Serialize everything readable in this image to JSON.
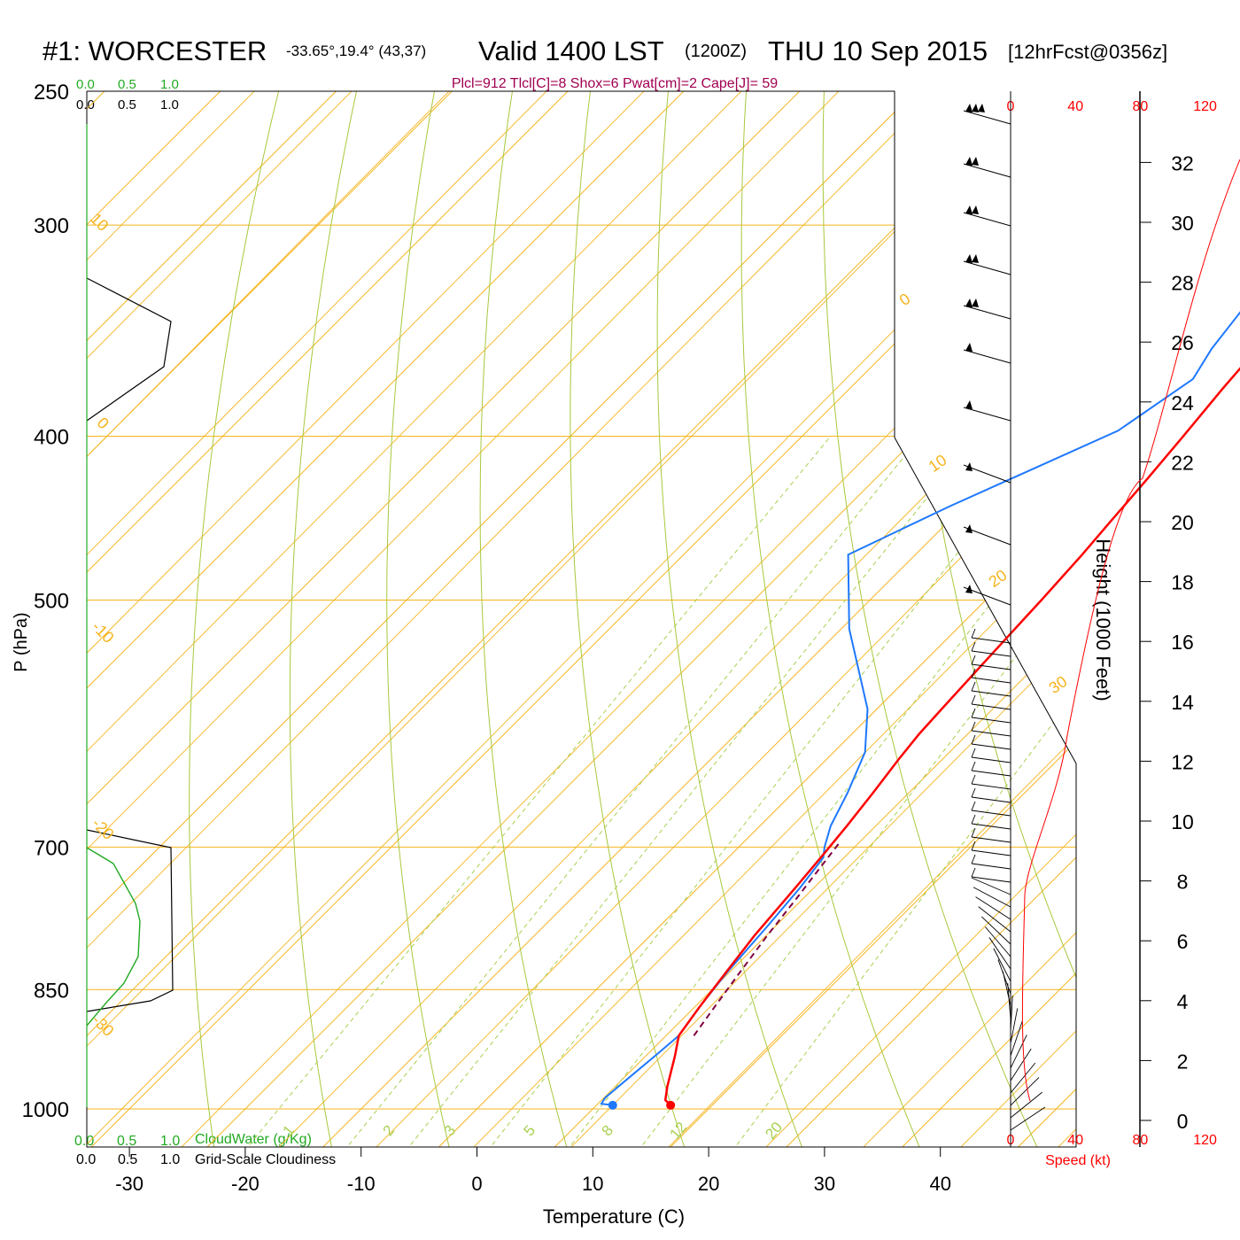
{
  "header": {
    "station": "#1: WORCESTER",
    "coords": "-33.65°,19.4° (43,37)",
    "valid": "Valid 1400 LST",
    "zulu": "(1200Z)",
    "date": "THU 10 Sep 2015",
    "fcst": "[12hrFcst@0356z]"
  },
  "indices": "Plcl=912 Tlcl[C]=8 Shox=6 Pwat[cm]=2 Cape[J]= 59",
  "cloud_scale_top": {
    "green": [
      "0.0",
      "0.5",
      "1.0"
    ],
    "black": [
      "0.0",
      "0.5",
      "1.0"
    ]
  },
  "cloud_scale_bottom": {
    "green": [
      "0.0",
      "0.5",
      "1.0"
    ],
    "black": [
      "0.0",
      "0.5",
      "1.0"
    ],
    "cloudwater_label": "CloudWater (g/Kg)",
    "cloudiness_label": "Grid-Scale Cloudiness"
  },
  "colors": {
    "isotherm": "#f5b41e",
    "dry_adiabat": "#a8c83c",
    "mixing_ratio": "#a8d050",
    "temperature": "#ff0000",
    "dewpoint": "#1e78ff",
    "parcel": "#800040",
    "cloudwater": "#22aa22",
    "indices": "#a00050",
    "wind_speed": "#ff0000"
  },
  "chart_data": {
    "type": "line",
    "title": "",
    "xlabel": "Temperature (C)",
    "ylabel": "P (hPa)",
    "ylabel_right": "Height (1000 Feet)",
    "x_ticks": [
      -30,
      -20,
      -10,
      0,
      10,
      20,
      30,
      40
    ],
    "pressure_ticks": [
      1000,
      850,
      700,
      500,
      400,
      300,
      250
    ],
    "height_ticks": [
      0,
      2,
      4,
      6,
      8,
      10,
      12,
      14,
      16,
      18,
      20,
      22,
      24,
      26,
      28,
      30,
      32
    ],
    "wind_speed_ticks_top": [
      0,
      40,
      80,
      120
    ],
    "wind_speed_ticks_bottom": [
      0,
      40,
      80,
      120
    ],
    "wind_speed_label": "Speed (kt)",
    "isotherm_labels": [
      "10",
      "0",
      "-10",
      "-20",
      "-30",
      "0",
      "10",
      "20",
      "30"
    ],
    "mixing_ratio_labels": [
      "1",
      "2",
      "3",
      "5",
      "8",
      "12",
      "20"
    ],
    "series": [
      {
        "temperature": [
          [
            16.4,
            995
          ],
          [
            15.5,
            988
          ],
          [
            14.5,
            970
          ],
          [
            12.5,
            930
          ],
          [
            11.1,
            905
          ],
          [
            10.4,
            870
          ],
          [
            9.7,
            830
          ],
          [
            9.0,
            790
          ],
          [
            8.4,
            740
          ],
          [
            7.9,
            705
          ],
          [
            7.5,
            680
          ],
          [
            6.9,
            650
          ],
          [
            6.2,
            620
          ],
          [
            5.8,
            600
          ],
          [
            5.6,
            580
          ],
          [
            5.3,
            550
          ],
          [
            5.0,
            520
          ],
          [
            4.8,
            500
          ],
          [
            4.4,
            470
          ],
          [
            4.0,
            450
          ],
          [
            3.5,
            425
          ],
          [
            2.9,
            400
          ],
          [
            2.2,
            375
          ],
          [
            1.6,
            350
          ],
          [
            1.2,
            335
          ],
          [
            1.2,
            320
          ],
          [
            1.2,
            300
          ],
          [
            1.3,
            285
          ],
          [
            1.5,
            275
          ],
          [
            1.5,
            262
          ]
        ]
      },
      {
        "dewpoint": [
          [
            11.4,
            995
          ],
          [
            10.3,
            993
          ],
          [
            10.1,
            985
          ],
          [
            10.4,
            960
          ],
          [
            10.8,
            930
          ],
          [
            11.1,
            905
          ],
          [
            10.4,
            870
          ],
          [
            9.8,
            830
          ],
          [
            9.3,
            780
          ],
          [
            8.8,
            740
          ],
          [
            8.2,
            710
          ],
          [
            7.4,
            700
          ],
          [
            6.1,
            680
          ],
          [
            4.7,
            650
          ],
          [
            2.7,
            615
          ],
          [
            -0.8,
            580
          ],
          [
            -9.3,
            520
          ],
          [
            -15.8,
            470
          ],
          [
            -11.2,
            440
          ],
          [
            -3.2,
            397
          ],
          [
            -1.2,
            370
          ],
          [
            -2.2,
            355
          ],
          [
            -3.2,
            330
          ],
          [
            -8.3,
            290
          ],
          [
            -9.3,
            265
          ]
        ]
      },
      {
        "parcel": [
          [
            12.4,
            905
          ],
          [
            11.7,
            870
          ],
          [
            10.9,
            830
          ],
          [
            10.1,
            790
          ],
          [
            9.4,
            750
          ],
          [
            8.7,
            715
          ],
          [
            8.3,
            695
          ]
        ]
      }
    ]
  }
}
